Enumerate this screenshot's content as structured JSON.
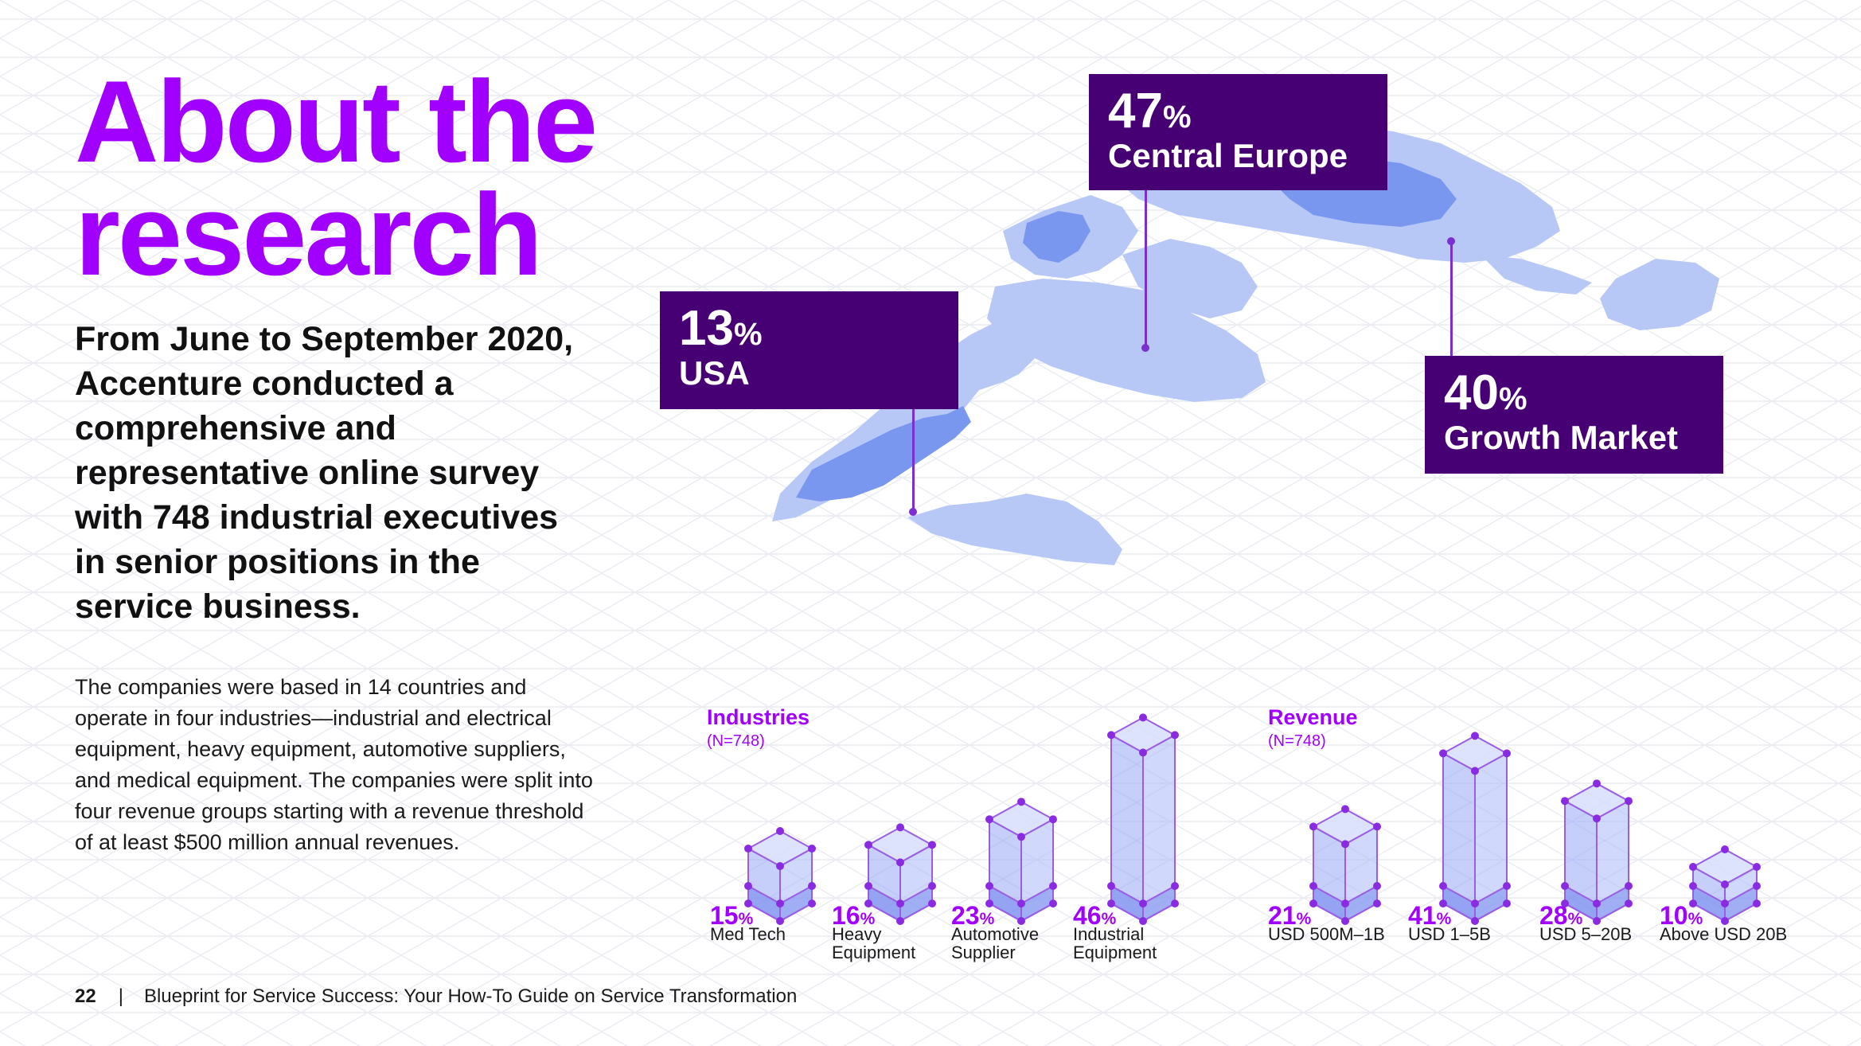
{
  "title": {
    "line1": "About the",
    "line2": "research"
  },
  "lead": "From June to September 2020, Accenture conducted a comprehensive and representative online survey with 748 industrial executives in senior positions in the service business.",
  "body": "The companies were based in 14 countries and operate in four industries—industrial and electrical equipment, heavy equipment, automotive suppliers, and medical equipment. The companies were split into four revenue groups starting with a revenue threshold of at least $500 million annual revenues.",
  "callouts": [
    {
      "value": "47",
      "unit": "%",
      "label": "Central Europe"
    },
    {
      "value": "13",
      "unit": "%",
      "label": "USA"
    },
    {
      "value": "40",
      "unit": "%",
      "label": "Growth Market"
    }
  ],
  "industries": {
    "title": "Industries",
    "n": "(N=748)",
    "items": [
      {
        "value": "15",
        "unit": "%",
        "label": "Med Tech"
      },
      {
        "value": "16",
        "unit": "%",
        "label": "Heavy Equipment"
      },
      {
        "value": "23",
        "unit": "%",
        "label": "Automotive Supplier"
      },
      {
        "value": "46",
        "unit": "%",
        "label": "Industrial Equipment"
      }
    ]
  },
  "revenue": {
    "title": "Revenue",
    "n": "(N=748)",
    "items": [
      {
        "value": "21",
        "unit": "%",
        "label": "USD 500M–1B"
      },
      {
        "value": "41",
        "unit": "%",
        "label": "USD 1–5B"
      },
      {
        "value": "28",
        "unit": "%",
        "label": "USD 5–20B"
      },
      {
        "value": "10",
        "unit": "%",
        "label": "Above USD 20B"
      }
    ]
  },
  "footer": {
    "page": "22",
    "separator": "|",
    "text": "Blueprint for Service Success: Your How-To Guide on Service Transformation"
  },
  "colors": {
    "title": "#a100ff",
    "callout": "#460073",
    "map_light": "#b7c8f7",
    "map_dark": "#7a97ef",
    "bar": "#a9b8f6"
  }
}
